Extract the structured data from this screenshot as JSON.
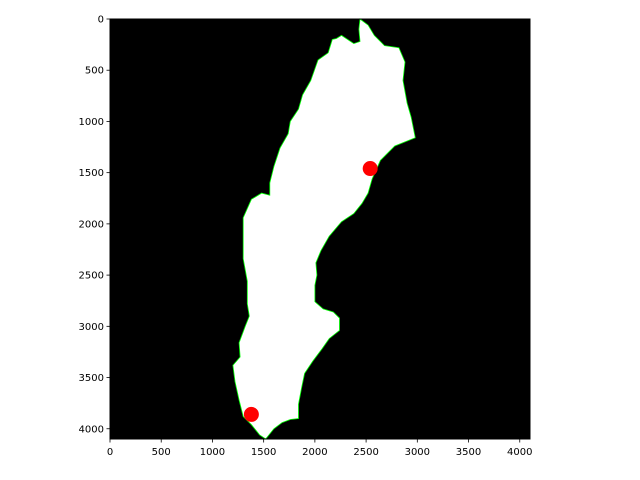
{
  "chart_data": {
    "type": "scatter",
    "title": "",
    "xlabel": "",
    "ylabel": "",
    "xlim": [
      0,
      4100
    ],
    "ylim": [
      4100,
      0
    ],
    "y_axis_inverted": true,
    "grid": false,
    "legend": "none",
    "x_ticks": [
      "0",
      "500",
      "1000",
      "1500",
      "2000",
      "2500",
      "3000",
      "3500",
      "4000"
    ],
    "y_ticks": [
      "0",
      "500",
      "1000",
      "1500",
      "2000",
      "2500",
      "3000",
      "3500",
      "4000"
    ],
    "background_image": {
      "description_type": "binary mask",
      "background_color": "#000000",
      "foreground_color": "#ffffff",
      "edge_color": "#00ff00"
    },
    "series": [
      {
        "marker": "circle",
        "color": "#ff0000",
        "points": [
          {
            "x": 2540,
            "y": 1460
          },
          {
            "x": 1380,
            "y": 3860
          }
        ]
      }
    ],
    "mask_outline": [
      [
        2440,
        0
      ],
      [
        2520,
        60
      ],
      [
        2580,
        160
      ],
      [
        2680,
        260
      ],
      [
        2820,
        280
      ],
      [
        2880,
        420
      ],
      [
        2860,
        600
      ],
      [
        2900,
        820
      ],
      [
        2940,
        960
      ],
      [
        2980,
        1160
      ],
      [
        2880,
        1200
      ],
      [
        2780,
        1240
      ],
      [
        2700,
        1320
      ],
      [
        2640,
        1380
      ],
      [
        2560,
        1560
      ],
      [
        2520,
        1700
      ],
      [
        2460,
        1800
      ],
      [
        2380,
        1900
      ],
      [
        2260,
        1980
      ],
      [
        2140,
        2120
      ],
      [
        2060,
        2260
      ],
      [
        2010,
        2380
      ],
      [
        2020,
        2500
      ],
      [
        2000,
        2600
      ],
      [
        2000,
        2760
      ],
      [
        2080,
        2830
      ],
      [
        2180,
        2860
      ],
      [
        2240,
        2920
      ],
      [
        2240,
        3040
      ],
      [
        2140,
        3120
      ],
      [
        2070,
        3220
      ],
      [
        1980,
        3340
      ],
      [
        1900,
        3460
      ],
      [
        1870,
        3600
      ],
      [
        1840,
        3760
      ],
      [
        1840,
        3900
      ],
      [
        1760,
        3910
      ],
      [
        1680,
        3940
      ],
      [
        1600,
        4000
      ],
      [
        1520,
        4100
      ],
      [
        1460,
        4060
      ],
      [
        1380,
        3960
      ],
      [
        1300,
        3880
      ],
      [
        1260,
        3720
      ],
      [
        1220,
        3540
      ],
      [
        1200,
        3380
      ],
      [
        1270,
        3300
      ],
      [
        1260,
        3160
      ],
      [
        1320,
        3000
      ],
      [
        1360,
        2900
      ],
      [
        1340,
        2780
      ],
      [
        1340,
        2560
      ],
      [
        1300,
        2340
      ],
      [
        1300,
        2140
      ],
      [
        1300,
        1940
      ],
      [
        1380,
        1760
      ],
      [
        1480,
        1700
      ],
      [
        1560,
        1720
      ],
      [
        1560,
        1600
      ],
      [
        1600,
        1440
      ],
      [
        1660,
        1260
      ],
      [
        1740,
        1120
      ],
      [
        1760,
        1000
      ],
      [
        1840,
        880
      ],
      [
        1880,
        740
      ],
      [
        1960,
        600
      ],
      [
        2030,
        400
      ],
      [
        2130,
        330
      ],
      [
        2170,
        200
      ],
      [
        2210,
        190
      ],
      [
        2260,
        160
      ],
      [
        2380,
        240
      ],
      [
        2440,
        220
      ],
      [
        2430,
        100
      ],
      [
        2440,
        0
      ]
    ]
  }
}
